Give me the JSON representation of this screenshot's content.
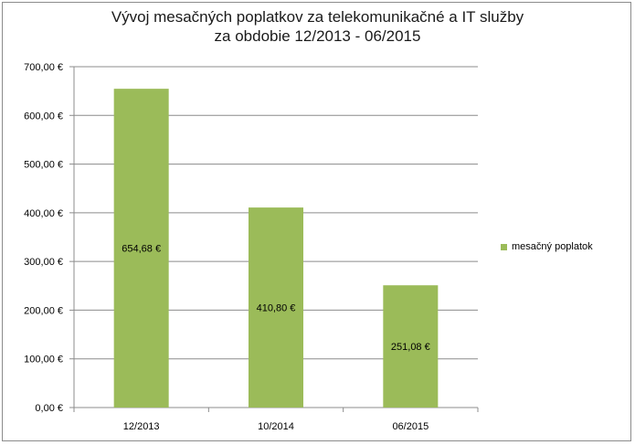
{
  "chart_data": {
    "type": "bar",
    "title": "Vývoj mesačných poplatkov za telekomunikačné a IT služby",
    "subtitle": "za obdobie 12/2013 - 06/2015",
    "categories": [
      "12/2013",
      "10/2014",
      "06/2015"
    ],
    "series": [
      {
        "name": "mesačný poplatok",
        "values": [
          654.68,
          410.8,
          251.08
        ],
        "labels": [
          "654,68 €",
          "410,80 €",
          "251,08 €"
        ],
        "color": "#9bbb59"
      }
    ],
    "ylim": [
      0,
      700
    ],
    "yticks": [
      0,
      100,
      200,
      300,
      400,
      500,
      600,
      700
    ],
    "ytick_labels": [
      "0,00 €",
      "100,00 €",
      "200,00 €",
      "300,00 €",
      "400,00 €",
      "500,00 €",
      "600,00 €",
      "700,00 €"
    ],
    "grid": true,
    "legend_position": "right"
  }
}
